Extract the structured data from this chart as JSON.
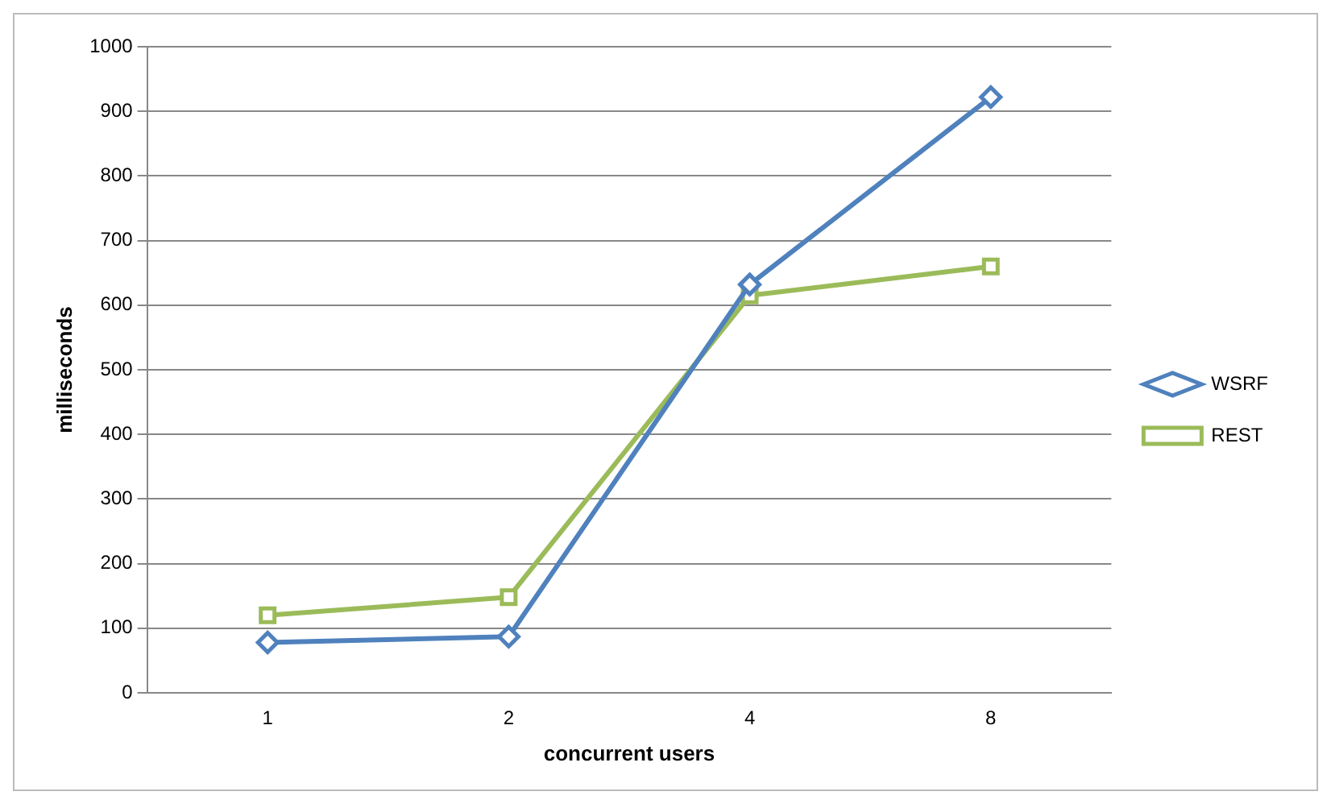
{
  "chart_data": {
    "type": "line",
    "xlabel": "concurrent users",
    "ylabel": "milliseconds",
    "categories": [
      "1",
      "2",
      "4",
      "8"
    ],
    "series": [
      {
        "name": "WSRF",
        "color": "#4f81bd",
        "values": [
          78,
          87,
          632,
          922
        ],
        "marker": "diamond"
      },
      {
        "name": "REST",
        "color": "#9bbb59",
        "values": [
          120,
          148,
          615,
          660
        ],
        "marker": "square"
      }
    ],
    "ylim": [
      0,
      1000
    ],
    "yticks": [
      0,
      100,
      200,
      300,
      400,
      500,
      600,
      700,
      800,
      900,
      1000
    ],
    "grid": "y",
    "legend": "right",
    "line_style": "solid"
  }
}
